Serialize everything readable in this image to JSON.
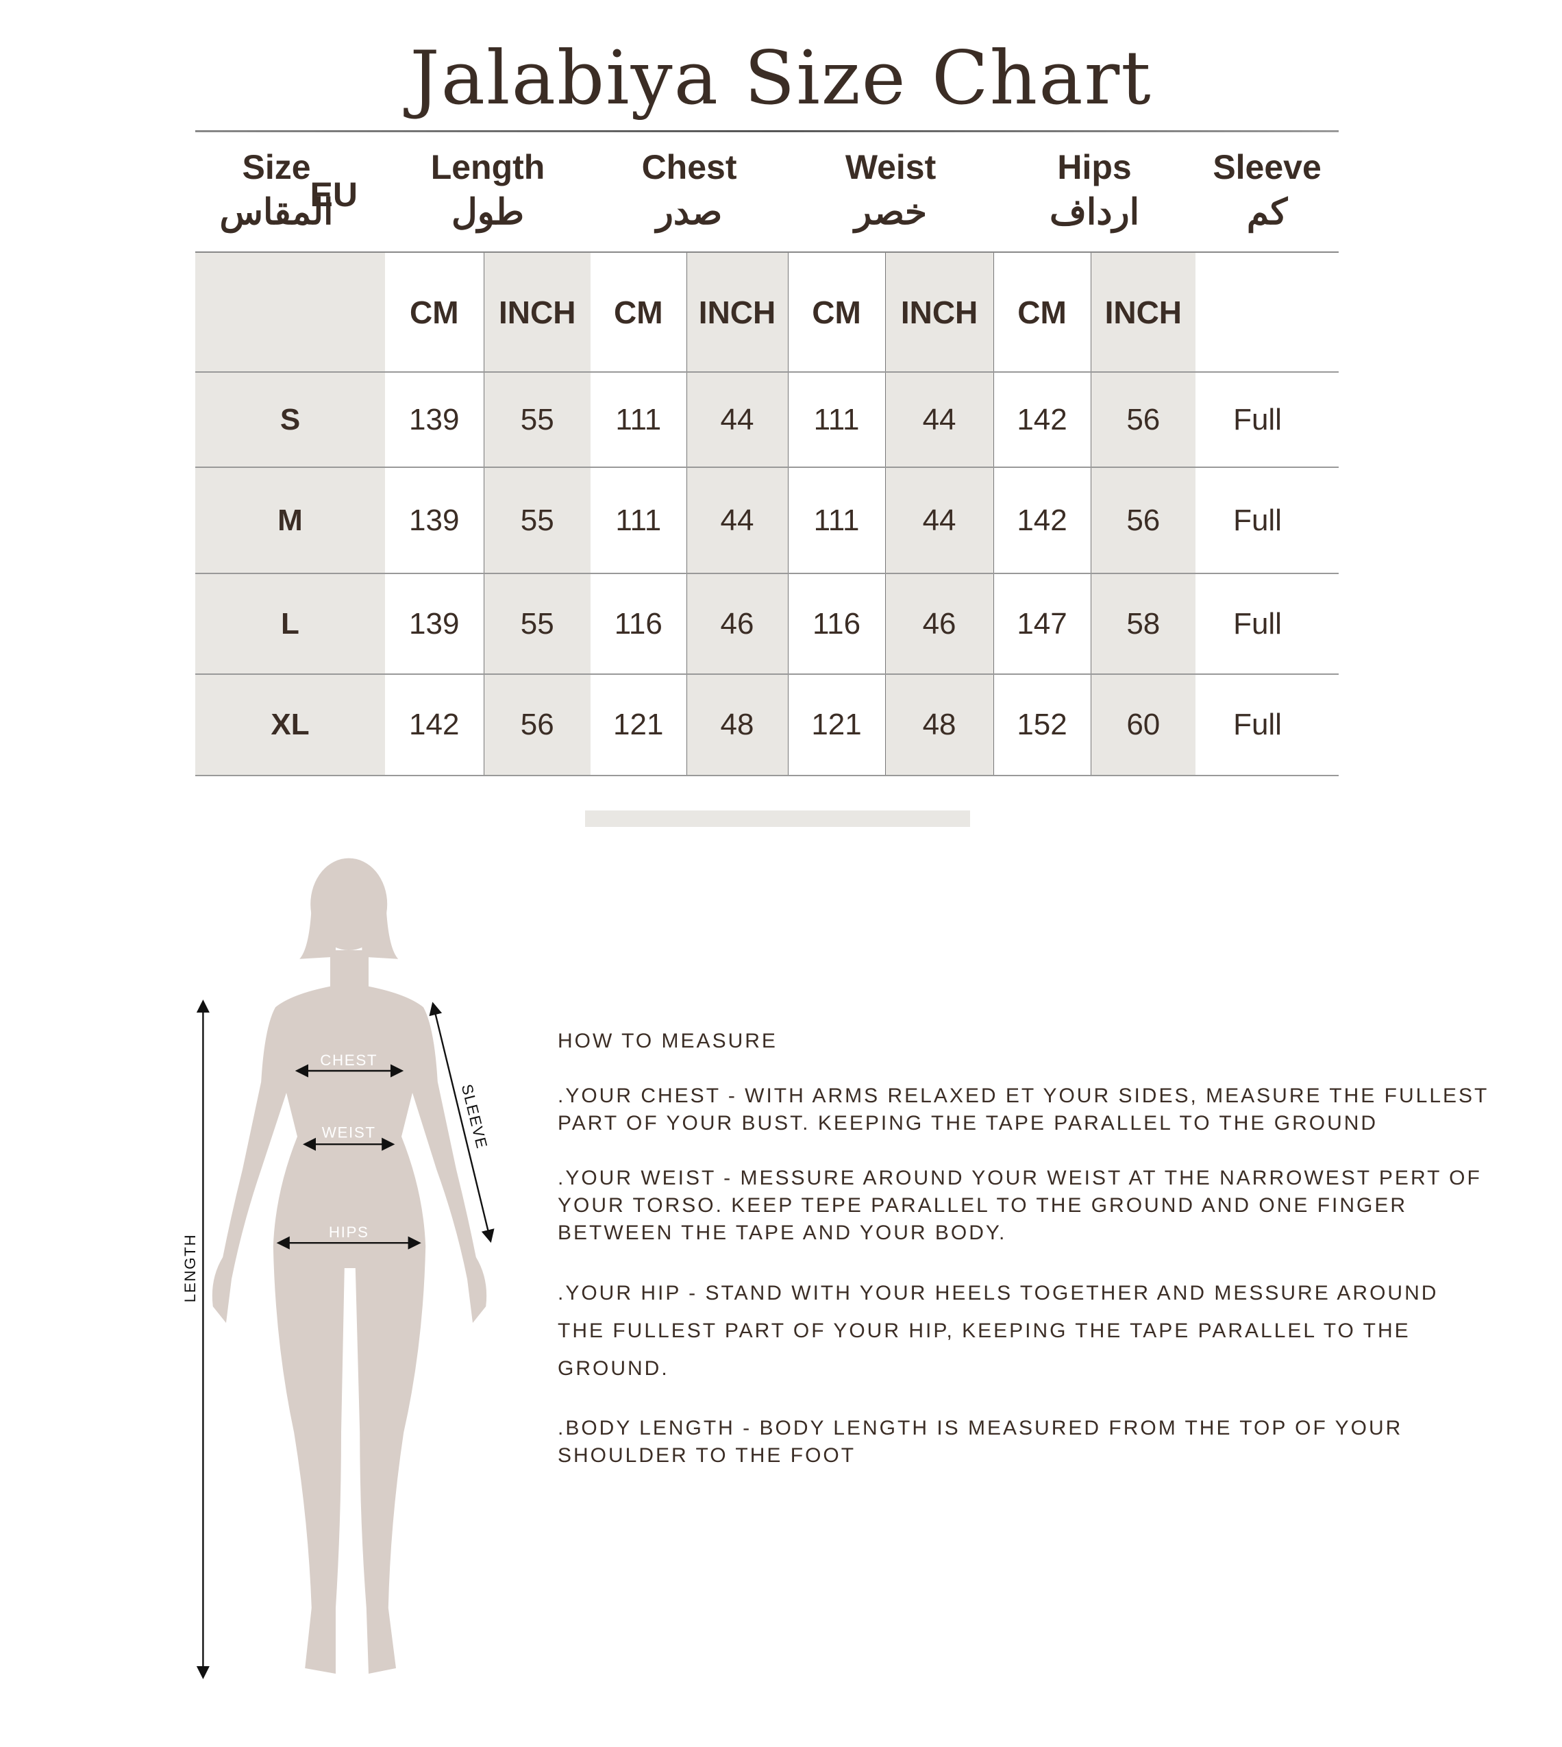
{
  "title": "Jalabiya Size Chart",
  "table": {
    "headers": [
      {
        "en": "Size",
        "ar": "المقاس",
        "extra": "EU"
      },
      {
        "en": "Length",
        "ar": "طول"
      },
      {
        "en": "Chest",
        "ar": "صدر"
      },
      {
        "en": "Weist",
        "ar": "خصر"
      },
      {
        "en": "Hips",
        "ar": "ارداف"
      },
      {
        "en": "Sleeve",
        "ar": "كم"
      }
    ],
    "units": [
      "CM",
      "INCH",
      "CM",
      "INCH",
      "CM",
      "INCH",
      "CM",
      "INCH"
    ],
    "rows": [
      {
        "size": "S",
        "values": [
          "139",
          "55",
          "111",
          "44",
          "111",
          "44",
          "142",
          "56"
        ],
        "sleeve": "Full"
      },
      {
        "size": "M",
        "values": [
          "139",
          "55",
          "111",
          "44",
          "111",
          "44",
          "142",
          "56"
        ],
        "sleeve": "Full"
      },
      {
        "size": "L",
        "values": [
          "139",
          "55",
          "116",
          "46",
          "116",
          "46",
          "147",
          "58"
        ],
        "sleeve": "Full"
      },
      {
        "size": "XL",
        "values": [
          "142",
          "56",
          "121",
          "48",
          "121",
          "48",
          "152",
          "60"
        ],
        "sleeve": "Full"
      }
    ]
  },
  "figure": {
    "labels": {
      "chest": "CHEST",
      "weist": "WEIST",
      "hips": "HIPS",
      "length": "LENGTH",
      "sleeve": "SLEEVE"
    },
    "silhouette_color": "#d8cec8"
  },
  "how_to_measure": {
    "heading": "HOW TO MEASURE",
    "chest": ".YOUR CHEST - WITH ARMS RELAXED ET YOUR SIDES, MEASURE THE FULLEST PART OF YOUR BUST. KEEPING THE TAPE PARALLEL TO THE GROUND",
    "weist": ".YOUR WEIST - MESSURE AROUND YOUR WEIST AT THE NARROWEST PERT OF YOUR TORSO. KEEP TEPE PARALLEL TO THE GROUND AND ONE FINGER BETWEEN THE TAPE AND YOUR BODY.",
    "hip": ".YOUR HIP - STAND WITH YOUR HEELS TOGETHER AND MESSURE AROUND THE FULLEST PART OF YOUR HIP, KEEPING THE TAPE PARALLEL TO THE GROUND.",
    "length": ".BODY LENGTH - BODY LENGTH IS MEASURED FROM THE TOP OF YOUR SHOULDER TO THE FOOT"
  },
  "colors": {
    "text": "#3b2d25",
    "shade": "#e9e7e3"
  }
}
